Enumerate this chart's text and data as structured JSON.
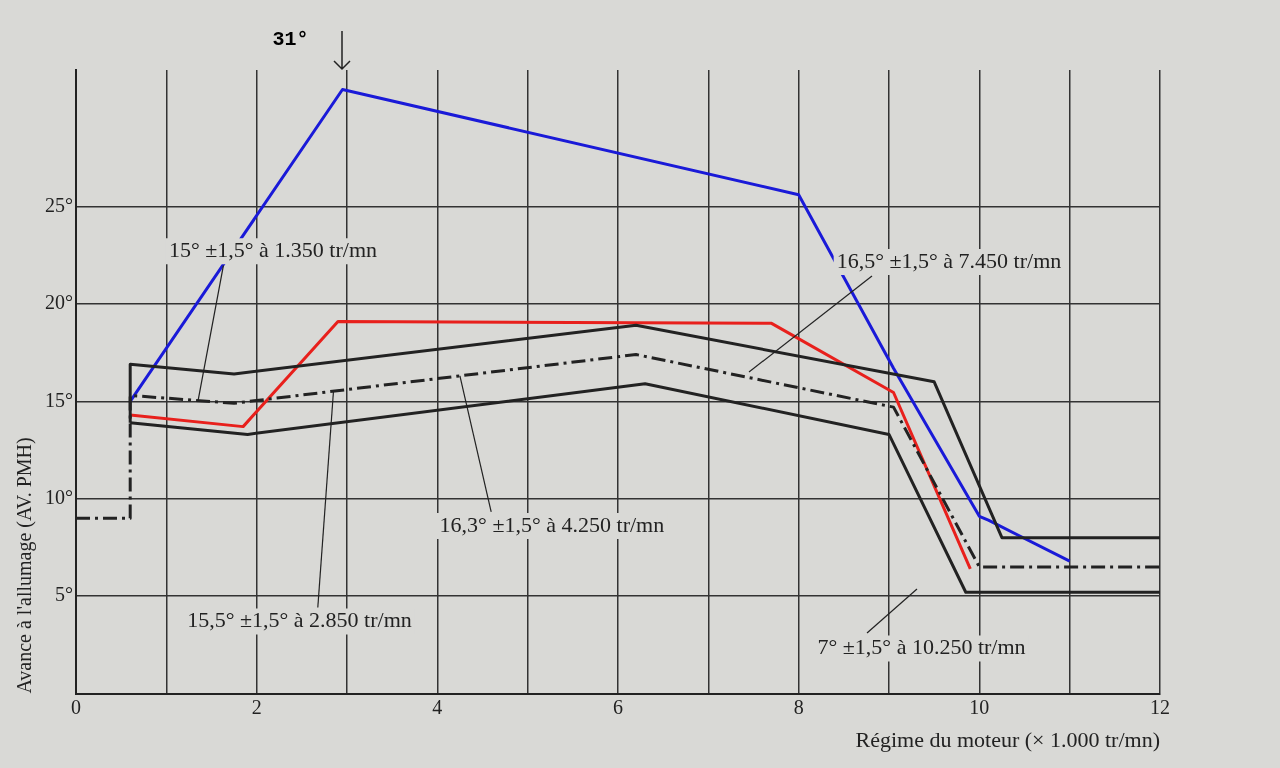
{
  "chart_data": {
    "type": "line",
    "xlabel": "Régime du moteur (× 1.000 tr/mn)",
    "ylabel": "Avance à l'allumage (AV. PMH)",
    "xlim": [
      0,
      12
    ],
    "xticks": [
      0,
      {
        "value": 1,
        "label": null
      },
      2,
      {
        "value": 3,
        "label": null
      },
      4,
      {
        "value": 5,
        "label": null
      },
      6,
      {
        "value": 7,
        "label": null
      },
      8,
      {
        "value": 9,
        "label": null
      },
      10,
      {
        "value": 11,
        "label": null
      },
      12
    ],
    "ylim": [
      0,
      32
    ],
    "yticks": [
      {
        "value": 5,
        "label": "5°"
      },
      {
        "value": 10,
        "label": "10°"
      },
      {
        "value": 15,
        "label": "15°"
      },
      {
        "value": 20,
        "label": "20°"
      },
      {
        "value": 25,
        "label": "25°"
      }
    ],
    "grid": true,
    "legend": false,
    "marker": "none",
    "series": [
      {
        "color": "#222222",
        "line_style": "solid",
        "x": [
          0.6,
          0.6,
          1.75,
          6.2,
          9.5,
          10.25,
          12
        ],
        "values": [
          13.9,
          16.9,
          16.4,
          18.9,
          16.0,
          8.0,
          8.0
        ]
      },
      {
        "color": "#222222",
        "line_style": "dashed",
        "x": [
          0,
          0.6,
          0.6,
          1.75,
          6.2,
          9.05,
          10.0,
          12
        ],
        "values": [
          9,
          9,
          15.3,
          14.9,
          17.4,
          14.7,
          6.5,
          6.5
        ]
      },
      {
        "color": "#222222",
        "line_style": "solid",
        "x": [
          0.6,
          1.9,
          6.3,
          9.0,
          9.85,
          12
        ],
        "values": [
          13.9,
          13.3,
          15.9,
          13.3,
          5.2,
          5.2
        ]
      },
      {
        "color": "#e8201c",
        "line_style": "solid",
        "x": [
          0.6,
          1.85,
          2.9,
          7.7,
          9.05,
          9.9
        ],
        "values": [
          14.3,
          13.7,
          19.1,
          19.0,
          15.45,
          6.4
        ]
      },
      {
        "color": "#1a1ad8",
        "line_style": "solid",
        "x": [
          0.6,
          2.95,
          8.0,
          9.05,
          10.0,
          10.1,
          11.0
        ],
        "values": [
          15.0,
          31,
          25.6,
          16.7,
          9.1,
          8.9,
          6.8
        ]
      }
    ],
    "annotations": [
      {
        "text": "15° ±1,5° à 1.350 tr/mn",
        "x": 1.35,
        "y": 15
      },
      {
        "text": "15,5° ±1,5° à 2.850 tr/mn",
        "x": 2.85,
        "y": 15.5
      },
      {
        "text": "16,3° ±1,5° à 4.250 tr/mn",
        "x": 4.25,
        "y": 16.3
      },
      {
        "text": "16,5° ±1,5° à 7.450 tr/mn",
        "x": 7.45,
        "y": 16.5
      },
      "7° ±1,5° à 10.250 tr/mn",
      {
        "text": "31°",
        "x": 2.95,
        "y": 31
      }
    ]
  }
}
